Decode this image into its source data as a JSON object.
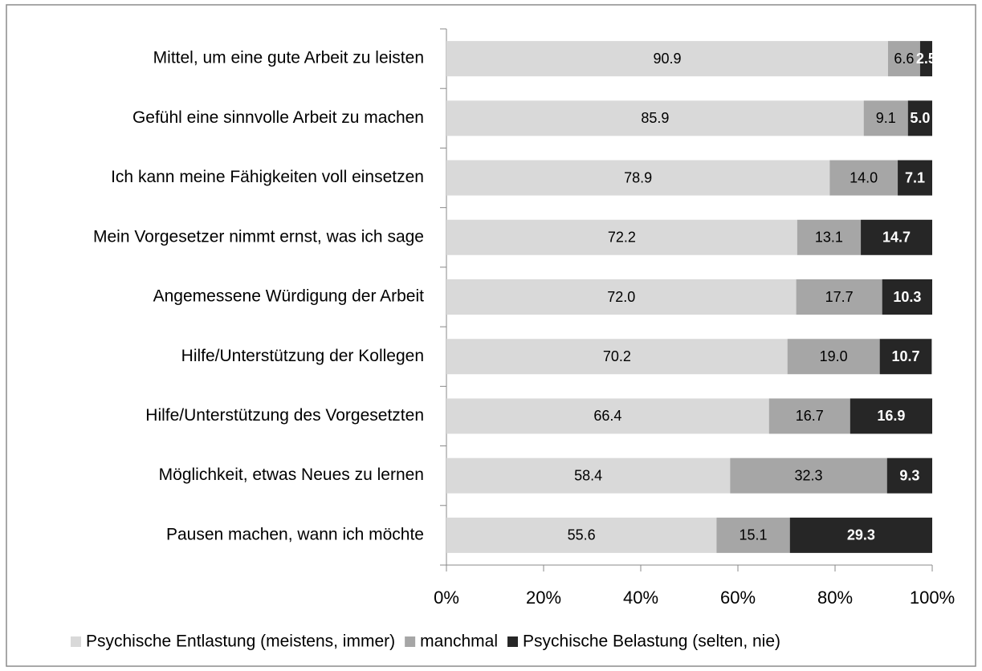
{
  "chart_data": {
    "type": "stacked-bar-horizontal",
    "categories": [
      "Mittel, um eine gute Arbeit zu leisten",
      "Gefühl eine sinnvolle Arbeit zu machen",
      "Ich kann meine Fähigkeiten voll einsetzen",
      "Mein Vorgesetzer nimmt ernst, was ich sage",
      "Angemessene Würdigung der Arbeit",
      "Hilfe/Unterstützung der Kollegen",
      "Hilfe/Unterstützung des Vorgesetzten",
      "Möglichkeit, etwas Neues zu lernen",
      "Pausen machen, wann ich möchte"
    ],
    "series": [
      {
        "name": "Psychische Entlastung (meistens, immer)",
        "color": "#d9d9d9",
        "values": [
          90.9,
          85.9,
          78.9,
          72.2,
          72.0,
          70.2,
          66.4,
          58.4,
          55.6
        ],
        "value_labels": [
          "90.9",
          "85.9",
          "78.9",
          "72.2",
          "72.0",
          "70.2",
          "66.4",
          "58.4",
          "55.6"
        ]
      },
      {
        "name": "manchmal",
        "color": "#a6a6a6",
        "values": [
          6.6,
          9.1,
          14.0,
          13.1,
          17.7,
          19.0,
          16.7,
          32.3,
          15.1
        ],
        "value_labels": [
          "6.6",
          "9.1",
          "14.0",
          "13.1",
          "17.7",
          "19.0",
          "16.7",
          "32.3",
          "15.1"
        ]
      },
      {
        "name": "Psychische Belastung (selten, nie)",
        "color": "#262626",
        "values": [
          2.5,
          5.0,
          7.1,
          14.7,
          10.3,
          10.7,
          16.9,
          9.3,
          29.3
        ],
        "value_labels": [
          "2.5",
          "5.0",
          "7.1",
          "14.7",
          "10.3",
          "10.7",
          "16.9",
          "9.3",
          "29.3"
        ]
      }
    ],
    "xlim": [
      0,
      100
    ],
    "xticks": [
      {
        "value": 0,
        "label": "0%"
      },
      {
        "value": 20,
        "label": "20%"
      },
      {
        "value": 40,
        "label": "40%"
      },
      {
        "value": 60,
        "label": "60%"
      },
      {
        "value": 80,
        "label": "80%"
      },
      {
        "value": 100,
        "label": "100%"
      }
    ],
    "legend": "bottom"
  }
}
